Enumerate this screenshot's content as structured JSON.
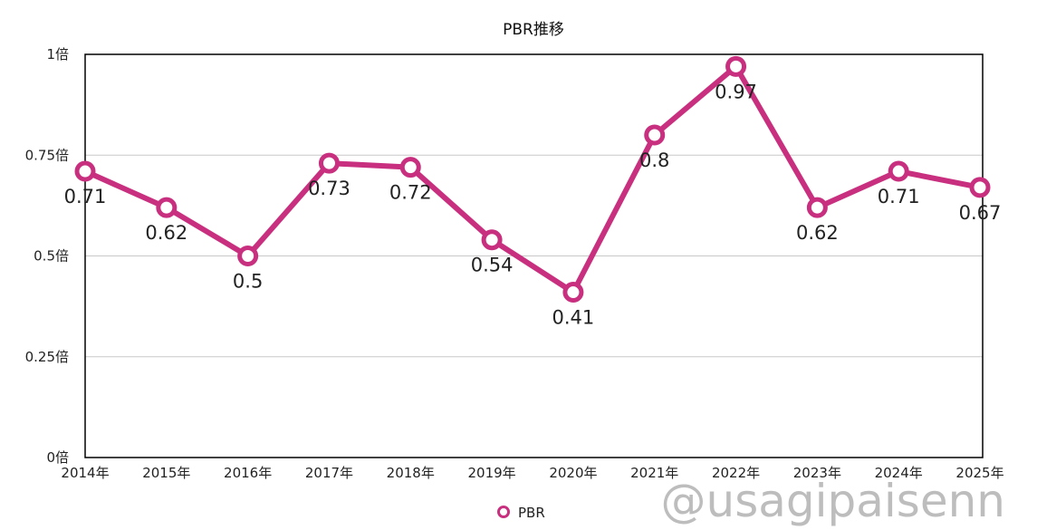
{
  "chart_data": {
    "type": "line",
    "title": "PBR推移",
    "xlabel": "",
    "ylabel": "",
    "categories": [
      "2014年",
      "2015年",
      "2016年",
      "2017年",
      "2018年",
      "2019年",
      "2020年",
      "2021年",
      "2022年",
      "2023年",
      "2024年",
      "2025年"
    ],
    "series": [
      {
        "name": "PBR",
        "values": [
          0.71,
          0.62,
          0.5,
          0.73,
          0.72,
          0.54,
          0.41,
          0.8,
          0.97,
          0.62,
          0.71,
          0.67
        ],
        "data_labels": [
          "0.71",
          "0.62",
          "0.5",
          "0.73",
          "0.72",
          "0.54",
          "0.41",
          "0.8",
          "0.97",
          "0.62",
          "0.71",
          "0.67"
        ],
        "color": "#c8307f"
      }
    ],
    "ylim": [
      0,
      1
    ],
    "yticks": [
      {
        "value": 0,
        "label": "0倍"
      },
      {
        "value": 0.25,
        "label": "0.25倍"
      },
      {
        "value": 0.5,
        "label": "0.5倍"
      },
      {
        "value": 0.75,
        "label": "0.75倍"
      },
      {
        "value": 1,
        "label": "1倍"
      }
    ],
    "grid": true,
    "legend_position": "bottom"
  },
  "watermark": "@usagipaisenn"
}
